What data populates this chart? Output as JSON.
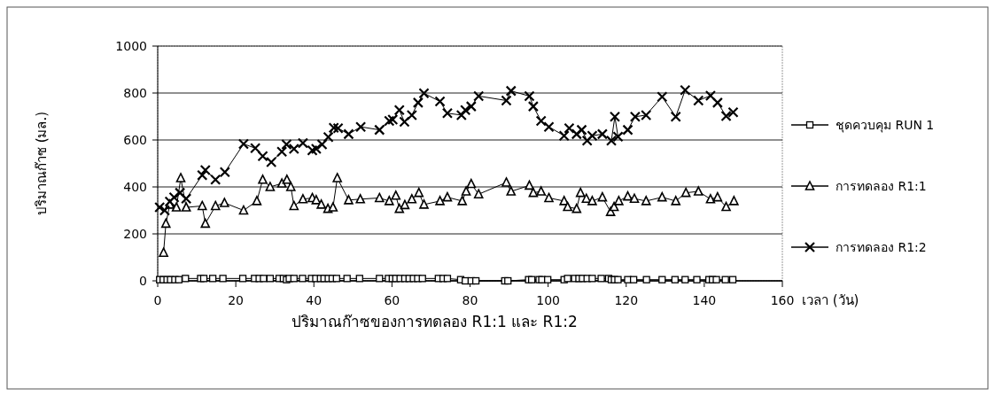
{
  "chart_data": {
    "type": "line",
    "title": "ปริมาณก๊าซของการทดลอง R1:1 และ R1:2",
    "xlabel": "เวลา (วัน)",
    "ylabel": "ปริมาณก๊าซ (มล.)",
    "xlim": [
      0,
      160
    ],
    "ylim": [
      0,
      1000
    ],
    "xticks": [
      0,
      20,
      40,
      60,
      80,
      100,
      120,
      140,
      160
    ],
    "yticks": [
      0,
      200,
      400,
      600,
      800,
      1000
    ],
    "grid": "y",
    "legend": "right",
    "series": [
      {
        "name": "ชุดควบคุม RUN 1",
        "color": "#000000",
        "marker": "square",
        "x": [
          0.5,
          1.4,
          2.4,
          3.3,
          4.4,
          5.4,
          7.1,
          11.0,
          11.8,
          14.1,
          16.7,
          21.8,
          24.8,
          26.0,
          27.1,
          28.8,
          31.1,
          32.2,
          33.0,
          33.7,
          34.9,
          37.1,
          39.4,
          40.5,
          41.7,
          42.6,
          43.7,
          44.7,
          45.8,
          48.5,
          51.7,
          56.8,
          59.1,
          60.1,
          61.0,
          62.1,
          63.3,
          64.4,
          65.5,
          66.6,
          67.8,
          71.9,
          73.1,
          74.2,
          77.6,
          78.8,
          80.3,
          81.5,
          88.9,
          89.7,
          95.0,
          95.8,
          97.7,
          98.4,
          99.9,
          104.1,
          105.0,
          106.8,
          107.9,
          108.8,
          110.0,
          111.3,
          113.6,
          115.5,
          116.2,
          117.0,
          117.9,
          120.4,
          121.9,
          125.2,
          129.2,
          132.5,
          135.1,
          138.1,
          141.2,
          142.1,
          143.1,
          145.4,
          147.3
        ],
        "values": [
          5,
          5,
          5,
          5,
          5,
          5,
          10,
          10,
          10,
          10,
          10,
          10,
          10,
          10,
          10,
          10,
          10,
          10,
          5,
          10,
          10,
          10,
          10,
          10,
          10,
          10,
          10,
          10,
          10,
          10,
          10,
          10,
          10,
          10,
          10,
          10,
          10,
          10,
          10,
          10,
          10,
          10,
          10,
          10,
          5,
          0,
          0,
          0,
          0,
          0,
          5,
          5,
          5,
          5,
          5,
          5,
          10,
          10,
          10,
          10,
          10,
          10,
          10,
          10,
          5,
          5,
          5,
          5,
          5,
          5,
          5,
          5,
          5,
          5,
          5,
          5,
          5,
          5,
          5
        ]
      },
      {
        "name": "การทดลอง R1:1",
        "color": "#000000",
        "marker": "triangle",
        "x": [
          1.5,
          2.1,
          3.1,
          4.8,
          5.9,
          7.3,
          11.4,
          12.2,
          14.8,
          17.1,
          22.0,
          25.4,
          26.9,
          28.8,
          31.8,
          33.1,
          34.1,
          34.9,
          37.2,
          39.6,
          40.6,
          41.9,
          43.6,
          44.9,
          46.0,
          48.9,
          51.9,
          56.8,
          59.3,
          61.0,
          61.9,
          63.3,
          65.1,
          66.9,
          68.2,
          72.3,
          74.2,
          78.0,
          79.0,
          80.3,
          82.2,
          89.3,
          90.5,
          95.2,
          96.2,
          98.2,
          100.2,
          104.1,
          105.0,
          107.3,
          108.3,
          109.8,
          111.3,
          113.9,
          116.0,
          116.9,
          118.1,
          120.4,
          122.1,
          125.1,
          129.2,
          132.7,
          135.3,
          138.5,
          141.6,
          143.4,
          145.6,
          147.6
        ],
        "values": [
          120,
          244,
          325,
          313,
          438,
          313,
          319,
          244,
          319,
          332,
          300,
          340,
          431,
          400,
          415,
          431,
          400,
          319,
          348,
          353,
          344,
          325,
          307,
          313,
          438,
          344,
          348,
          353,
          340,
          363,
          307,
          323,
          348,
          375,
          325,
          340,
          356,
          340,
          381,
          413,
          369,
          419,
          381,
          406,
          375,
          381,
          353,
          340,
          315,
          307,
          375,
          350,
          340,
          356,
          294,
          315,
          340,
          360,
          350,
          340,
          356,
          340,
          375,
          381,
          348,
          356,
          315,
          340
        ]
      },
      {
        "name": "การทดลอง R1:2",
        "color": "#000000",
        "marker": "cross",
        "x": [
          0.5,
          1.8,
          3.1,
          4.2,
          5.7,
          7.3,
          11.4,
          12.2,
          14.8,
          17.2,
          22.0,
          25.0,
          26.9,
          29.1,
          31.8,
          33.0,
          34.9,
          37.2,
          39.6,
          40.6,
          42.1,
          43.7,
          45.1,
          46.2,
          48.9,
          52.0,
          56.8,
          59.3,
          60.2,
          61.9,
          63.2,
          65.1,
          66.7,
          68.2,
          72.3,
          74.2,
          77.8,
          78.8,
          80.3,
          82.2,
          89.3,
          90.5,
          95.2,
          96.2,
          98.2,
          100.2,
          104.1,
          105.4,
          107.3,
          108.6,
          110.0,
          111.3,
          113.9,
          116.2,
          117.1,
          117.9,
          120.4,
          122.3,
          125.1,
          129.2,
          132.7,
          135.1,
          138.5,
          141.6,
          143.4,
          145.6,
          147.4
        ],
        "values": [
          313,
          300,
          338,
          356,
          375,
          350,
          450,
          472,
          431,
          463,
          583,
          565,
          531,
          506,
          550,
          581,
          562,
          587,
          556,
          562,
          581,
          612,
          652,
          650,
          625,
          656,
          643,
          681,
          687,
          727,
          677,
          706,
          759,
          799,
          764,
          714,
          706,
          727,
          743,
          787,
          768,
          809,
          787,
          743,
          681,
          656,
          618,
          650,
          625,
          643,
          597,
          618,
          625,
          597,
          699,
          614,
          643,
          699,
          706,
          784,
          699,
          812,
          768,
          789,
          759,
          702,
          718
        ]
      }
    ]
  }
}
